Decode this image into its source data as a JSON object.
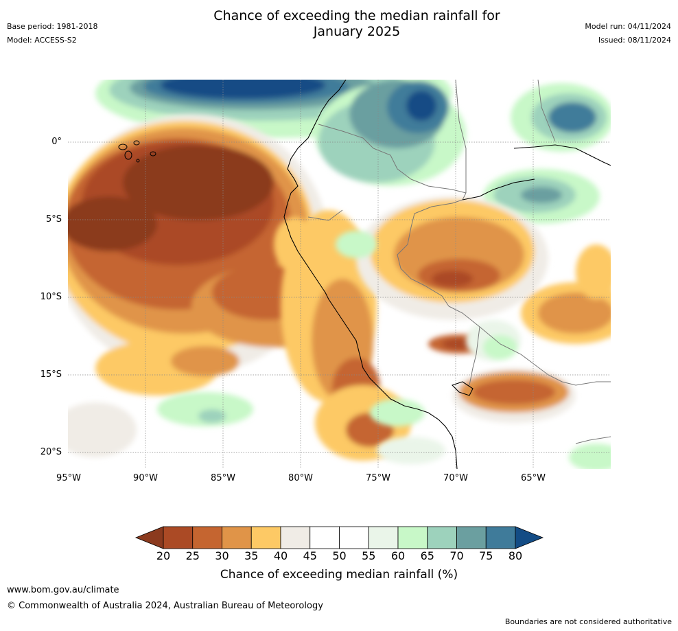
{
  "title_line1": "Chance of exceeding the median rainfall for",
  "title_line2": "January 2025",
  "meta_left": [
    "Base period: 1981-2018",
    "Model: ACCESS-S2"
  ],
  "meta_right": [
    "Model run: 04/11/2024",
    "Issued: 08/11/2024"
  ],
  "lat_ticks": [
    "0°",
    "5°S",
    "10°S",
    "15°S",
    "20°S"
  ],
  "lon_ticks": [
    "95°W",
    "90°W",
    "85°W",
    "80°W",
    "75°W",
    "70°W",
    "65°W"
  ],
  "colorbar": {
    "title": "Chance of exceeding median rainfall (%)",
    "ticks": [
      "20",
      "25",
      "30",
      "35",
      "40",
      "45",
      "50",
      "55",
      "60",
      "65",
      "70",
      "75",
      "80"
    ],
    "colors": [
      "#8b3a1e",
      "#ab4a25",
      "#c56530",
      "#e09448",
      "#fdc965",
      "#f0ece6",
      "#ffffff",
      "#ffffff",
      "#eaf5e9",
      "#c8f8c8",
      "#9dd2bc",
      "#6b9fa0",
      "#3f7b9a",
      "#134c85"
    ]
  },
  "footer": {
    "url": "www.bom.gov.au/climate",
    "copyright": "© Commonwealth of Australia 2024, Australian Bureau of Meteorology",
    "note": "Boundaries are not considered authoritative"
  }
}
